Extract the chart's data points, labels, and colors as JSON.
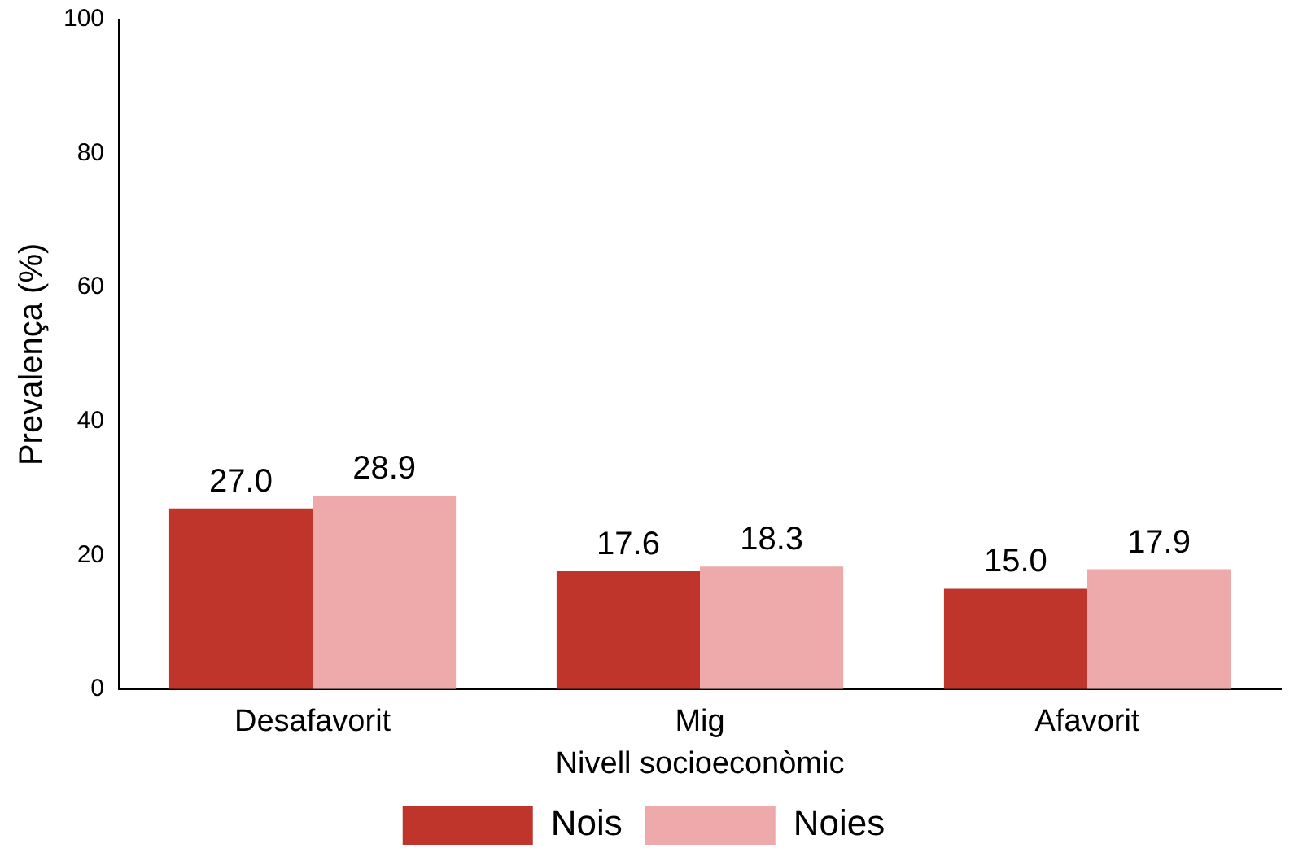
{
  "chart_data": {
    "type": "bar",
    "xlabel": "Nivell socioeconòmic",
    "ylabel": "Prevalença (%)",
    "categories": [
      "Desafavorit",
      "Mig",
      "Afavorit"
    ],
    "series": [
      {
        "name": "Nois",
        "color": "#c0352b",
        "values": [
          27.0,
          17.6,
          15.0
        ],
        "value_labels": [
          "27.0",
          "17.6",
          "15.0"
        ]
      },
      {
        "name": "Noies",
        "color": "#eeaaab",
        "values": [
          28.9,
          18.3,
          17.9
        ],
        "value_labels": [
          "28.9",
          "18.3",
          "17.9"
        ]
      }
    ],
    "ylim": [
      0,
      100
    ],
    "yticks": [
      0,
      20,
      40,
      60,
      80,
      100
    ],
    "grid": false,
    "legend": "bottom"
  }
}
